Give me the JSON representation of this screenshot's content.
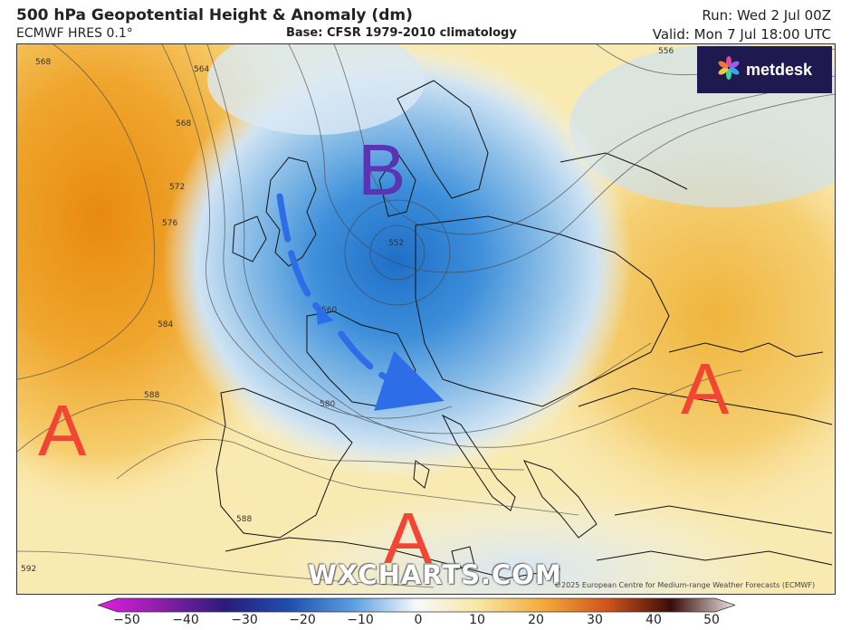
{
  "header": {
    "title": "500 hPa Geopotential Height & Anomaly (dm)",
    "model": "ECMWF HRES 0.1°",
    "base": "Base: CFSR 1979-2010 climatology",
    "run": "Run: Wed 2 Jul 00Z",
    "valid": "Valid: Mon 7 Jul 18:00 UTC"
  },
  "logo": {
    "text": "metdesk",
    "icon": "pinwheel-icon"
  },
  "watermark": "WXCHARTS.COM",
  "copyright": "©2025 European Centre for Medium-range Weather Forecasts (ECMWF)",
  "annotations": {
    "low_center": "B",
    "high_atlantic": "A",
    "high_east": "A",
    "high_africa": "A"
  },
  "contours": [
    "568",
    "564",
    "568",
    "572",
    "576",
    "584",
    "588",
    "592",
    "588",
    "580",
    "556",
    "552",
    "560"
  ],
  "colorbar": {
    "ticks": [
      "−50",
      "−40",
      "−30",
      "−20",
      "−10",
      "0",
      "10",
      "20",
      "30",
      "40",
      "50"
    ]
  },
  "colors": {
    "low_label": "#5b34b4",
    "high_label": "#f24533",
    "arrow": "#2d6de8",
    "logo_bg": "#1e1a4f"
  }
}
